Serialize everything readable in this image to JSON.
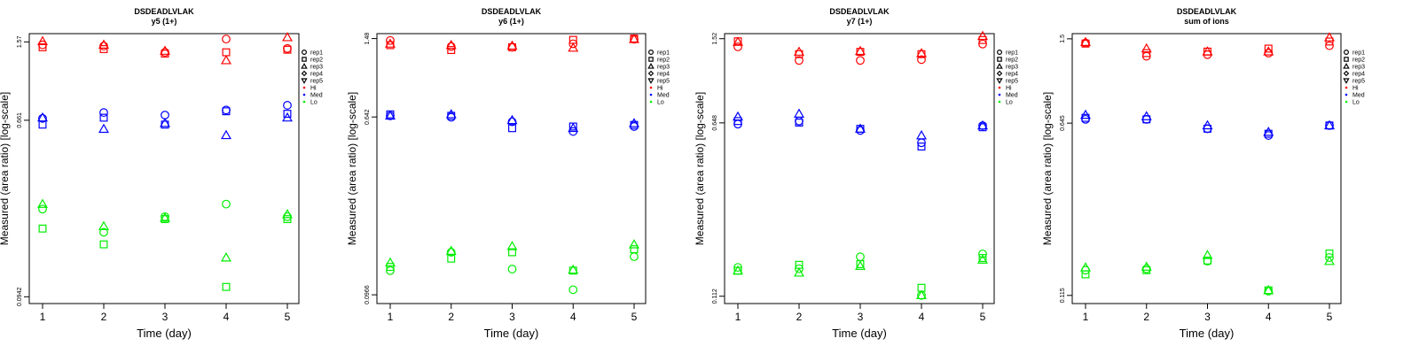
{
  "chart_data": [
    {
      "type": "scatter",
      "title": "DSDEADLVLAK",
      "subtitle": "y5 (1+)",
      "xlabel": "Time (day)",
      "ylabel": "Measured (area ratio) [log-scale]",
      "x_ticks": [
        "1",
        "2",
        "3",
        "4",
        "5"
      ],
      "y_ticks": [
        {
          "value": 0.0942,
          "label": "0.0942"
        },
        {
          "value": 0.661,
          "label": "0.661"
        },
        {
          "value": 1.57,
          "label": "1.57"
        }
      ],
      "ylim": [
        0.0874,
        1.72
      ],
      "legend": [
        "rep1",
        "rep2",
        "rep3",
        "rep4",
        "rep5",
        "Hi",
        "Med",
        "Lo"
      ],
      "colors": {
        "Hi": "#ff0000",
        "Med": "#0000ff",
        "Lo": "#00ee00"
      },
      "series": [
        {
          "name": "Hi",
          "rep1": [
            1.52,
            1.5,
            1.4,
            1.62,
            1.46
          ],
          "rep2": [
            1.48,
            1.45,
            1.38,
            1.4,
            1.44
          ],
          "rep3": [
            1.58,
            1.52,
            1.42,
            1.28,
            1.65
          ]
        },
        {
          "name": "Med",
          "rep1": [
            0.675,
            0.72,
            0.7,
            0.74,
            0.78
          ],
          "rep2": [
            0.63,
            0.68,
            0.63,
            0.73,
            0.71
          ],
          "rep3": [
            0.68,
            0.6,
            0.64,
            0.56,
            0.68
          ]
        },
        {
          "name": "Lo",
          "rep1": [
            0.248,
            0.192,
            0.228,
            0.262,
            0.228
          ],
          "rep2": [
            0.2,
            0.168,
            0.222,
            0.105,
            0.222
          ],
          "rep3": [
            0.262,
            0.205,
            0.225,
            0.145,
            0.234
          ]
        }
      ]
    },
    {
      "type": "scatter",
      "title": "DSDEADLVLAK",
      "subtitle": "y6 (1+)",
      "xlabel": "Time (day)",
      "ylabel": "Measured (area ratio) [log-scale]",
      "x_ticks": [
        "1",
        "2",
        "3",
        "4",
        "5"
      ],
      "y_ticks": [
        {
          "value": 0.0966,
          "label": "0.0966"
        },
        {
          "value": 0.642,
          "label": "0.642"
        },
        {
          "value": 1.48,
          "label": "1.48"
        }
      ],
      "ylim": [
        0.088,
        1.56
      ],
      "legend": [
        "rep1",
        "rep2",
        "rep3",
        "rep4",
        "rep5",
        "Hi",
        "Med",
        "Lo"
      ],
      "colors": {
        "Hi": "#ff0000",
        "Med": "#0000ff",
        "Lo": "#00ee00"
      },
      "series": [
        {
          "name": "Hi",
          "rep1": [
            1.45,
            1.36,
            1.35,
            1.4,
            1.47
          ],
          "rep2": [
            1.38,
            1.31,
            1.35,
            1.46,
            1.48
          ],
          "rep3": [
            1.4,
            1.38,
            1.37,
            1.34,
            1.47
          ]
        },
        {
          "name": "Med",
          "rep1": [
            0.65,
            0.64,
            0.61,
            0.55,
            0.58
          ],
          "rep2": [
            0.66,
            0.65,
            0.57,
            0.58,
            0.59
          ],
          "rep3": [
            0.65,
            0.66,
            0.62,
            0.57,
            0.6
          ]
        },
        {
          "name": "Lo",
          "rep1": [
            0.125,
            0.152,
            0.127,
            0.102,
            0.145
          ],
          "rep2": [
            0.13,
            0.142,
            0.152,
            0.125,
            0.157
          ],
          "rep3": [
            0.136,
            0.154,
            0.162,
            0.126,
            0.165
          ]
        }
      ]
    },
    {
      "type": "scatter",
      "title": "DSDEADLVLAK",
      "subtitle": "y7 (1+)",
      "xlabel": "Time (day)",
      "ylabel": "Measured (area ratio) [log-scale]",
      "x_ticks": [
        "1",
        "2",
        "3",
        "4",
        "5"
      ],
      "y_ticks": [
        {
          "value": 0.112,
          "label": "0.112"
        },
        {
          "value": 0.648,
          "label": "0.648"
        },
        {
          "value": 1.52,
          "label": "1.52"
        }
      ],
      "ylim": [
        0.104,
        1.6
      ],
      "legend": [
        "rep1",
        "rep2",
        "rep3",
        "rep4",
        "rep5",
        "Hi",
        "Med",
        "Lo"
      ],
      "colors": {
        "Hi": "#ff0000",
        "Med": "#0000ff",
        "Lo": "#00ee00"
      },
      "series": [
        {
          "name": "Hi",
          "rep1": [
            1.4,
            1.22,
            1.22,
            1.23,
            1.44
          ],
          "rep2": [
            1.48,
            1.3,
            1.33,
            1.3,
            1.5
          ],
          "rep3": [
            1.47,
            1.33,
            1.34,
            1.31,
            1.56
          ]
        },
        {
          "name": "Med",
          "rep1": [
            0.64,
            0.66,
            0.6,
            0.53,
            0.63
          ],
          "rep2": [
            0.66,
            0.65,
            0.61,
            0.51,
            0.62
          ],
          "rep3": [
            0.69,
            0.71,
            0.61,
            0.57,
            0.63
          ]
        },
        {
          "name": "Lo",
          "rep1": [
            0.15,
            0.148,
            0.167,
            0.113,
            0.172
          ],
          "rep2": [
            0.145,
            0.154,
            0.155,
            0.122,
            0.165
          ],
          "rep3": [
            0.145,
            0.142,
            0.152,
            0.113,
            0.162
          ]
        }
      ]
    },
    {
      "type": "scatter",
      "title": "DSDEADLVLAK",
      "subtitle": "sum of ions",
      "xlabel": "Time (day)",
      "ylabel": "Measured (area ratio) [log-scale]",
      "x_ticks": [
        "1",
        "2",
        "3",
        "4",
        "5"
      ],
      "y_ticks": [
        {
          "value": 0.115,
          "label": "0.115"
        },
        {
          "value": 0.645,
          "label": "0.645"
        },
        {
          "value": 1.5,
          "label": "1.5"
        }
      ],
      "ylim": [
        0.106,
        1.58
      ],
      "legend": [
        "rep1",
        "rep2",
        "rep3",
        "rep4",
        "rep5",
        "Hi",
        "Med",
        "Lo"
      ],
      "colors": {
        "Hi": "#ff0000",
        "Med": "#0000ff",
        "Lo": "#00ee00"
      },
      "series": [
        {
          "name": "Hi",
          "rep1": [
            1.44,
            1.26,
            1.28,
            1.3,
            1.4
          ],
          "rep2": [
            1.43,
            1.3,
            1.32,
            1.36,
            1.46
          ],
          "rep3": [
            1.45,
            1.36,
            1.32,
            1.32,
            1.52
          ]
        },
        {
          "name": "Med",
          "rep1": [
            0.67,
            0.67,
            0.61,
            0.57,
            0.63
          ],
          "rep2": [
            0.68,
            0.67,
            0.61,
            0.58,
            0.63
          ],
          "rep3": [
            0.7,
            0.69,
            0.63,
            0.59,
            0.63
          ]
        },
        {
          "name": "Lo",
          "rep1": [
            0.148,
            0.15,
            0.162,
            0.12,
            0.168
          ],
          "rep2": [
            0.142,
            0.148,
            0.163,
            0.121,
            0.175
          ],
          "rep3": [
            0.152,
            0.153,
            0.172,
            0.121,
            0.162
          ]
        }
      ]
    }
  ]
}
